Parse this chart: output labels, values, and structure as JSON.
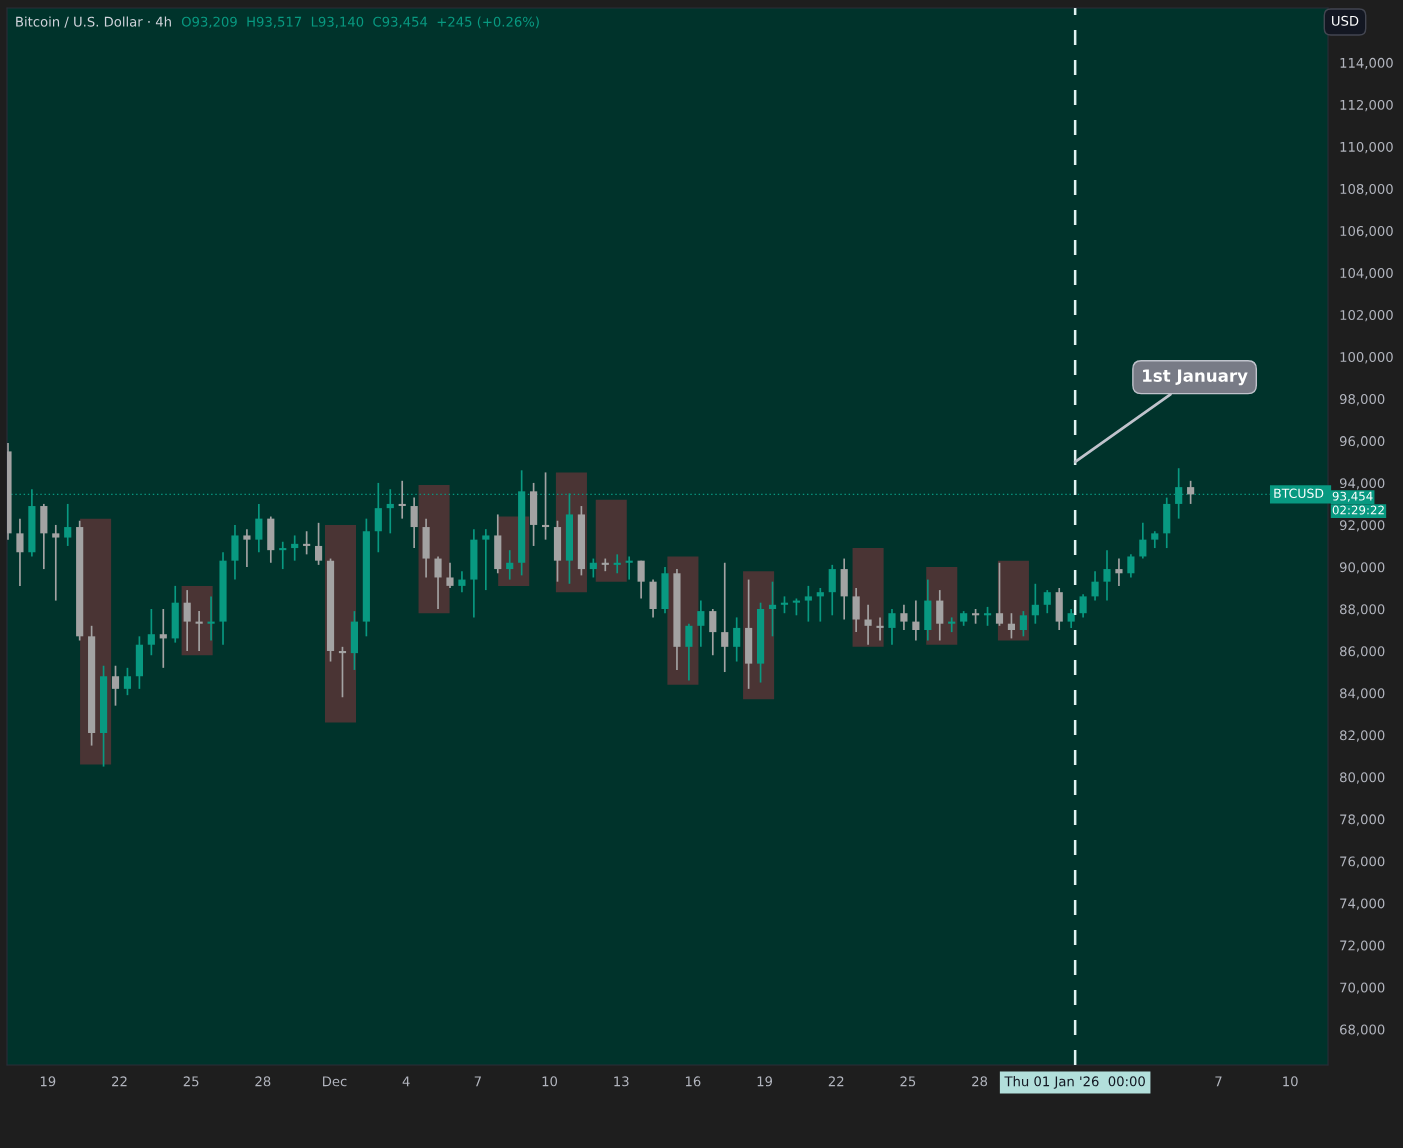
{
  "chart_data": {
    "type": "candlestick",
    "title": "Bitcoin / U.S. Dollar · 4h",
    "subtitle": "O93,209  H93,517  L93,140  C93,454  +245 (+0.26%)",
    "colors": [
      "#a3a3a3",
      "#a3a3a3",
      "#089981",
      "#a3a3a3",
      "#a3a3a3",
      "#089981",
      "#a3a3a3",
      "#a3a3a3",
      "#089981",
      "#a3a3a3",
      "#089981",
      "#089981",
      "#089981",
      "#a3a3a3",
      "#089981",
      "#a3a3a3",
      "#a3a3a3",
      "#089981",
      "#089981",
      "#089981",
      "#a3a3a3",
      "#089981",
      "#a3a3a3",
      "#089981",
      "#089981",
      "#a3a3a3",
      "#a3a3a3",
      "#a3a3a3",
      "#a3a3a3",
      "#089981",
      "#089981",
      "#089981",
      "#089981",
      "#a3a3a3",
      "#a3a3a3",
      "#a3a3a3",
      "#a3a3a3",
      "#a3a3a3",
      "#089981",
      "#089981",
      "#089981",
      "#a3a3a3",
      "#089981",
      "#089981",
      "#a3a3a3",
      "#a3a3a3",
      "#a3a3a3",
      "#089981",
      "#a3a3a3",
      "#089981",
      "#a3a3a3",
      "#089981",
      "#089981",
      "#a3a3a3",
      "#a3a3a3",
      "#089981",
      "#a3a3a3",
      "#089981",
      "#089981",
      "#a3a3a3",
      "#a3a3a3",
      "#089981",
      "#a3a3a3",
      "#089981",
      "#089981",
      "#089981",
      "#089981",
      "#089981",
      "#089981",
      "#089981",
      "#a3a3a3",
      "#a3a3a3",
      "#a3a3a3",
      "#a3a3a3",
      "#089981",
      "#a3a3a3",
      "#a3a3a3",
      "#089981",
      "#a3a3a3",
      "#089981",
      "#089981",
      "#a3a3a3",
      "#089981",
      "#a3a3a3",
      "#a3a3a3",
      "#089981",
      "#089981",
      "#089981",
      "#a3a3a3",
      "#089981",
      "#089981",
      "#089981",
      "#089981",
      "#a3a3a3",
      "#089981",
      "#089981",
      "#089981",
      "#089981",
      "#089981",
      "#a3a3a3"
    ],
    "x": [
      "2025-11-17T08:00",
      "2025-11-17T20:00",
      "2025-11-18T08:00",
      "2025-11-18T20:00",
      "2025-11-19T08:00",
      "2025-11-19T20:00",
      "2025-11-20T08:00",
      "2025-11-20T20:00",
      "2025-11-21T08:00",
      "2025-11-21T20:00",
      "2025-11-22T08:00",
      "2025-11-22T20:00",
      "2025-11-23T08:00",
      "2025-11-23T20:00",
      "2025-11-24T08:00",
      "2025-11-24T20:00",
      "2025-11-25T08:00",
      "2025-11-25T20:00",
      "2025-11-26T08:00",
      "2025-11-26T20:00",
      "2025-11-27T08:00",
      "2025-11-27T20:00",
      "2025-11-28T08:00",
      "2025-11-28T20:00",
      "2025-11-29T08:00",
      "2025-11-29T20:00",
      "2025-11-30T08:00",
      "2025-11-30T20:00",
      "2025-12-01T08:00",
      "2025-12-01T20:00",
      "2025-12-02T08:00",
      "2025-12-02T20:00",
      "2025-12-03T08:00",
      "2025-12-03T20:00",
      "2025-12-04T08:00",
      "2025-12-04T20:00",
      "2025-12-05T08:00",
      "2025-12-05T20:00",
      "2025-12-06T08:00",
      "2025-12-06T20:00",
      "2025-12-07T08:00",
      "2025-12-07T20:00",
      "2025-12-08T08:00",
      "2025-12-08T20:00",
      "2025-12-09T08:00",
      "2025-12-09T20:00",
      "2025-12-10T08:00",
      "2025-12-10T20:00",
      "2025-12-11T08:00",
      "2025-12-11T20:00",
      "2025-12-12T08:00",
      "2025-12-12T20:00",
      "2025-12-13T08:00",
      "2025-12-13T20:00",
      "2025-12-14T08:00",
      "2025-12-14T20:00",
      "2025-12-15T08:00",
      "2025-12-15T20:00",
      "2025-12-16T08:00",
      "2025-12-16T20:00",
      "2025-12-17T08:00",
      "2025-12-17T20:00",
      "2025-12-18T08:00",
      "2025-12-18T20:00",
      "2025-12-19T08:00",
      "2025-12-19T20:00",
      "2025-12-20T08:00",
      "2025-12-20T20:00",
      "2025-12-21T08:00",
      "2025-12-21T20:00",
      "2025-12-22T08:00",
      "2025-12-22T20:00",
      "2025-12-23T08:00",
      "2025-12-23T20:00",
      "2025-12-24T08:00",
      "2025-12-24T20:00",
      "2025-12-25T08:00",
      "2025-12-25T20:00",
      "2025-12-26T08:00",
      "2025-12-26T20:00",
      "2025-12-27T08:00",
      "2025-12-27T20:00",
      "2025-12-28T08:00",
      "2025-12-28T20:00",
      "2025-12-29T08:00",
      "2025-12-29T20:00",
      "2025-12-30T08:00",
      "2025-12-30T20:00",
      "2025-12-31T08:00",
      "2025-12-31T20:00",
      "2026-01-01T08:00",
      "2026-01-01T20:00",
      "2026-01-02T08:00",
      "2026-01-02T20:00",
      "2026-01-03T08:00",
      "2026-01-03T20:00",
      "2026-01-04T08:00",
      "2026-01-04T20:00",
      "2026-01-05T08:00",
      "2026-01-05T20:00"
    ],
    "ohlc": [
      [
        95500,
        95900,
        91300,
        91600
      ],
      [
        91600,
        92300,
        89100,
        90700
      ],
      [
        90700,
        93700,
        90500,
        92900
      ],
      [
        92900,
        93000,
        89900,
        91600
      ],
      [
        91600,
        92000,
        88400,
        91400
      ],
      [
        91400,
        93000,
        91000,
        91900
      ],
      [
        91900,
        92200,
        86500,
        86700
      ],
      [
        86700,
        87200,
        81500,
        82100
      ],
      [
        82100,
        85300,
        80500,
        84800
      ],
      [
        84800,
        85300,
        83400,
        84200
      ],
      [
        84200,
        85200,
        83900,
        84800
      ],
      [
        84800,
        86700,
        84200,
        86300
      ],
      [
        86300,
        88000,
        85800,
        86800
      ],
      [
        86800,
        88000,
        85200,
        86600
      ],
      [
        86600,
        89100,
        86400,
        88300
      ],
      [
        88300,
        88900,
        86000,
        87400
      ],
      [
        87400,
        87900,
        86000,
        87300
      ],
      [
        87300,
        88600,
        86500,
        87400
      ],
      [
        87400,
        90700,
        86300,
        90300
      ],
      [
        90300,
        92000,
        89400,
        91500
      ],
      [
        91500,
        91800,
        90000,
        91300
      ],
      [
        91300,
        93000,
        90700,
        92300
      ],
      [
        92300,
        92400,
        90200,
        90800
      ],
      [
        90800,
        91200,
        89900,
        90900
      ],
      [
        90900,
        91500,
        90300,
        91100
      ],
      [
        91100,
        91700,
        90600,
        91000
      ],
      [
        91000,
        92100,
        90100,
        90300
      ],
      [
        90300,
        90400,
        85500,
        86000
      ],
      [
        86000,
        86200,
        83800,
        85900
      ],
      [
        85900,
        87900,
        85100,
        87400
      ],
      [
        87400,
        92300,
        86700,
        91700
      ],
      [
        91700,
        94000,
        90700,
        92800
      ],
      [
        92800,
        93700,
        91600,
        93000
      ],
      [
        93000,
        94100,
        92300,
        92900
      ],
      [
        92900,
        93300,
        90900,
        91900
      ],
      [
        91900,
        92300,
        89500,
        90400
      ],
      [
        90400,
        90500,
        88000,
        89500
      ],
      [
        89500,
        90200,
        89000,
        89100
      ],
      [
        89100,
        89800,
        88800,
        89400
      ],
      [
        89400,
        91800,
        87600,
        91300
      ],
      [
        91300,
        91800,
        88900,
        91500
      ],
      [
        91500,
        92500,
        89700,
        89900
      ],
      [
        89900,
        90800,
        89400,
        90200
      ],
      [
        90200,
        94600,
        89600,
        93600
      ],
      [
        93600,
        94000,
        91000,
        92000
      ],
      [
        92000,
        94500,
        91300,
        91900
      ],
      [
        91900,
        92200,
        89300,
        90300
      ],
      [
        90300,
        93500,
        89200,
        92500
      ],
      [
        92500,
        92900,
        89600,
        89900
      ],
      [
        89900,
        90400,
        89500,
        90200
      ],
      [
        90200,
        90400,
        89800,
        90100
      ],
      [
        90100,
        90600,
        89700,
        90200
      ],
      [
        90200,
        90500,
        89400,
        90300
      ],
      [
        90300,
        90300,
        88500,
        89300
      ],
      [
        89300,
        89400,
        87600,
        88000
      ],
      [
        88000,
        90000,
        87800,
        89700
      ],
      [
        89700,
        89900,
        85100,
        86200
      ],
      [
        86200,
        87300,
        84600,
        87200
      ],
      [
        87200,
        88400,
        86200,
        87900
      ],
      [
        87900,
        88000,
        85800,
        86900
      ],
      [
        86900,
        90200,
        85000,
        86200
      ],
      [
        86200,
        87600,
        85500,
        87100
      ],
      [
        87100,
        89400,
        84200,
        85400
      ],
      [
        85400,
        88300,
        84500,
        88000
      ],
      [
        88000,
        89300,
        86700,
        88200
      ],
      [
        88200,
        88600,
        87800,
        88300
      ],
      [
        88300,
        88500,
        87700,
        88400
      ],
      [
        88400,
        89100,
        87400,
        88600
      ],
      [
        88600,
        89000,
        87400,
        88800
      ],
      [
        88800,
        90100,
        87700,
        89900
      ],
      [
        89900,
        90400,
        87500,
        88600
      ],
      [
        88600,
        89000,
        86900,
        87500
      ],
      [
        87500,
        88200,
        86300,
        87200
      ],
      [
        87200,
        87600,
        86500,
        87100
      ],
      [
        87100,
        88000,
        86300,
        87800
      ],
      [
        87800,
        88200,
        87000,
        87400
      ],
      [
        87400,
        88400,
        86500,
        87000
      ],
      [
        87000,
        89400,
        86500,
        88400
      ],
      [
        88400,
        88900,
        86500,
        87300
      ],
      [
        87300,
        87600,
        86900,
        87400
      ],
      [
        87400,
        87900,
        87200,
        87800
      ],
      [
        87800,
        88000,
        87300,
        87700
      ],
      [
        87700,
        88100,
        87200,
        87800
      ],
      [
        87800,
        90200,
        87200,
        87300
      ],
      [
        87300,
        87800,
        86600,
        87000
      ],
      [
        87000,
        87900,
        86700,
        87700
      ],
      [
        87700,
        89200,
        87300,
        88200
      ],
      [
        88200,
        88900,
        87800,
        88800
      ],
      [
        88800,
        89000,
        87000,
        87400
      ],
      [
        87400,
        88000,
        87100,
        87800
      ],
      [
        87800,
        88700,
        87600,
        88600
      ],
      [
        88600,
        89800,
        88400,
        89300
      ],
      [
        89300,
        90800,
        88400,
        89900
      ],
      [
        89900,
        90400,
        89100,
        89700
      ],
      [
        89700,
        90600,
        89500,
        90500
      ],
      [
        90500,
        92100,
        90400,
        91300
      ],
      [
        91300,
        91700,
        90900,
        91600
      ],
      [
        91600,
        93300,
        90900,
        93000
      ],
      [
        93000,
        94700,
        92300,
        93800
      ],
      [
        93800,
        94100,
        93000,
        93454
      ]
    ],
    "series": [
      {
        "type": "bar",
        "color": "#4a3434",
        "x": [
          "2025-11-21T00:00",
          "2025-11-25T06:00",
          "2025-12-01T06:00",
          "2025-12-05T04:00",
          "2025-12-08T12:00",
          "2025-12-10T22:00",
          "2025-12-12T14:00",
          "2025-12-15T14:00",
          "2025-12-18T18:00",
          "2025-12-23T08:00",
          "2025-12-26T10:00",
          "2025-12-29T10:00"
        ],
        "base": [
          80600,
          85800,
          82600,
          87800,
          89100,
          88800,
          89300,
          84400,
          83700,
          86200,
          86300,
          86500
        ],
        "values": [
          11700,
          3300,
          9400,
          6100,
          3300,
          5700,
          3900,
          6100,
          6100,
          4700,
          3700,
          3800
        ]
      }
    ],
    "xlim": [
      "2025-11-17T07:00",
      "2026-01-11T14:00"
    ],
    "xticks": [
      {
        "value": "2025-11-19",
        "label": "19"
      },
      {
        "value": "2025-11-22",
        "label": "22"
      },
      {
        "value": "2025-11-25",
        "label": "25"
      },
      {
        "value": "2025-11-28",
        "label": "28"
      },
      {
        "value": "2025-12-01",
        "label": "Dec"
      },
      {
        "value": "2025-12-04",
        "label": "4"
      },
      {
        "value": "2025-12-07",
        "label": "7"
      },
      {
        "value": "2025-12-10",
        "label": "10"
      },
      {
        "value": "2025-12-13",
        "label": "13"
      },
      {
        "value": "2025-12-16",
        "label": "16"
      },
      {
        "value": "2025-12-19",
        "label": "19"
      },
      {
        "value": "2025-12-22",
        "label": "22"
      },
      {
        "value": "2025-12-25",
        "label": "25"
      },
      {
        "value": "2025-12-28",
        "label": "28"
      },
      {
        "value": "2026-01-01T00:00",
        "label": "Thu 01 Jan '26  00:00"
      },
      {
        "value": "2026-01-07",
        "label": "7"
      },
      {
        "value": "2026-01-10",
        "label": "10"
      }
    ],
    "ylim": [
      66300,
      116600
    ],
    "yticks": [
      {
        "value": 68000,
        "label": "68,000"
      },
      {
        "value": 70000,
        "label": "70,000"
      },
      {
        "value": 72000,
        "label": "72,000"
      },
      {
        "value": 74000,
        "label": "74,000"
      },
      {
        "value": 76000,
        "label": "76,000"
      },
      {
        "value": 78000,
        "label": "78,000"
      },
      {
        "value": 80000,
        "label": "80,000"
      },
      {
        "value": 82000,
        "label": "82,000"
      },
      {
        "value": 84000,
        "label": "84,000"
      },
      {
        "value": 86000,
        "label": "86,000"
      },
      {
        "value": 88000,
        "label": "88,000"
      },
      {
        "value": 90000,
        "label": "90,000"
      },
      {
        "value": 92000,
        "label": "92,000"
      },
      {
        "value": 94000,
        "label": "94,000"
      },
      {
        "value": 96000,
        "label": "96,000"
      },
      {
        "value": 98000,
        "label": "98,000"
      },
      {
        "value": 100000,
        "label": "100,000"
      },
      {
        "value": 102000,
        "label": "102,000"
      },
      {
        "value": 104000,
        "label": "104,000"
      },
      {
        "value": 106000,
        "label": "106,000"
      },
      {
        "value": 108000,
        "label": "108,000"
      },
      {
        "value": 110000,
        "label": "110,000"
      },
      {
        "value": 112000,
        "label": "112,000"
      },
      {
        "value": 114000,
        "label": "114,000"
      }
    ],
    "ref_lines": [
      {
        "axis": "x",
        "value": "2026-01-01T00:00",
        "label": null,
        "color": "#e0f2f1",
        "line_style": "dashed"
      },
      {
        "axis": "y",
        "value": 93454,
        "label": "BTCUSD",
        "color": "#089981",
        "line_style": "dotted"
      }
    ],
    "annotations": [
      {
        "text": "1st January",
        "x": "2026-01-01T00:00",
        "y": 95000
      },
      "93,454",
      "02:29:22",
      "USD"
    ]
  }
}
